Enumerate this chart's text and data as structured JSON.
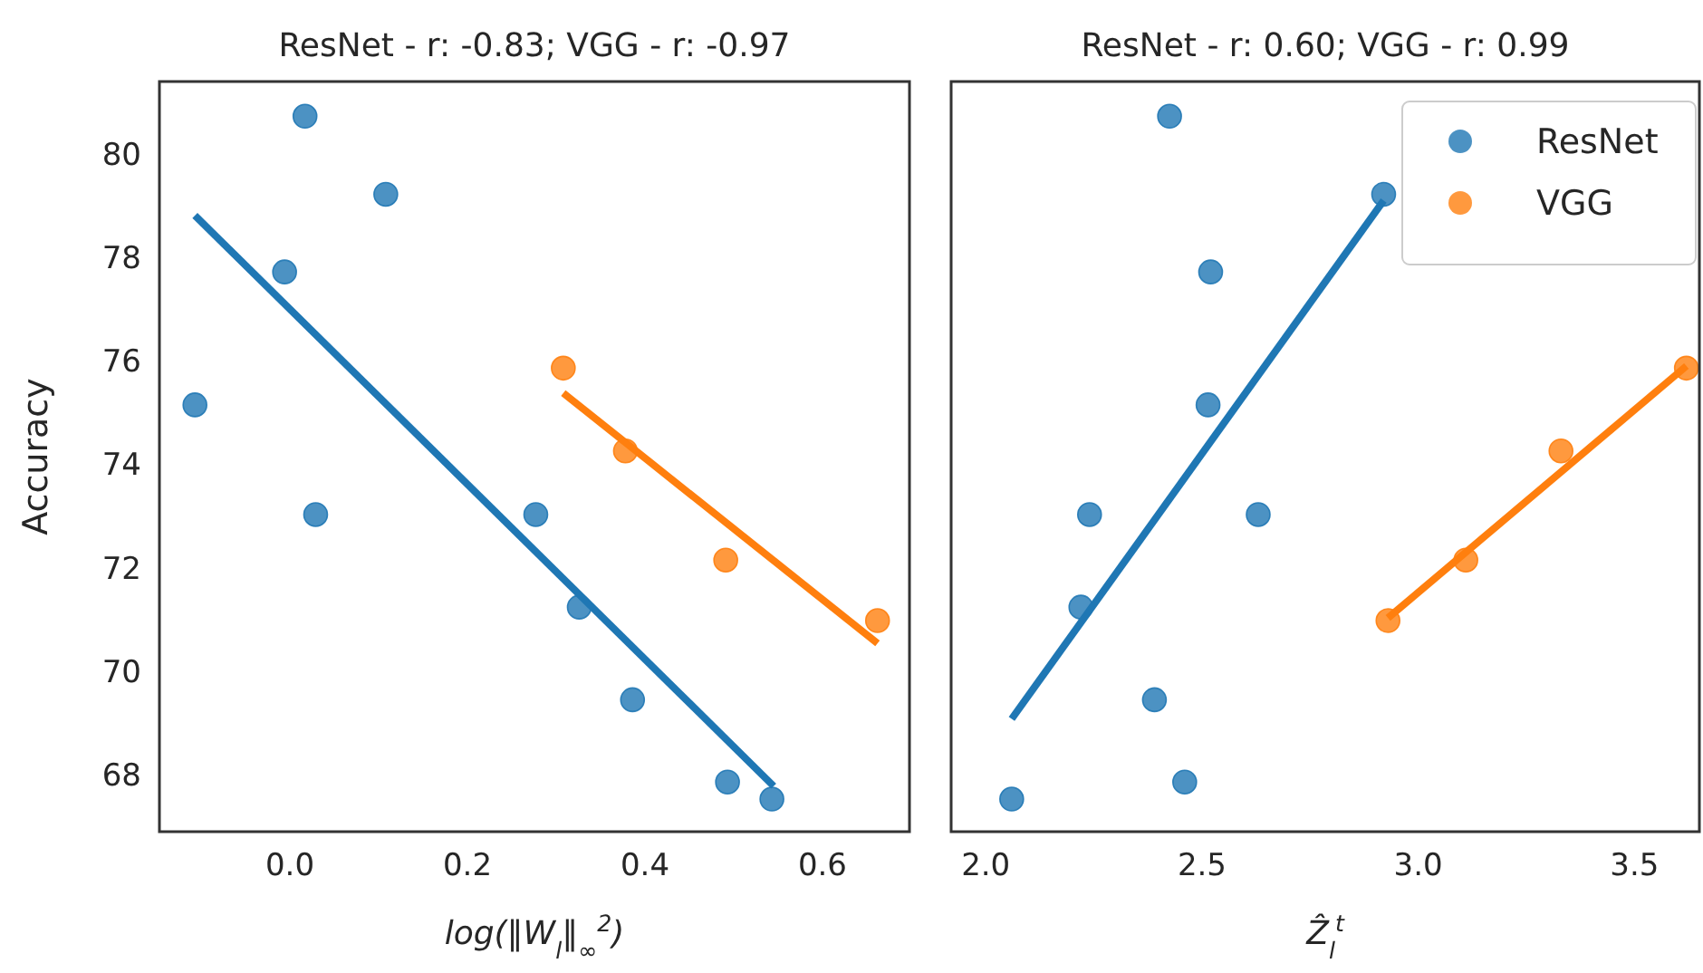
{
  "chart_data": [
    {
      "type": "scatter",
      "title": "ResNet - r: -0.83; VGG - r: -0.97",
      "xlabel": "log(‖W$_{l}$‖$_{∞}$$^{2}$)",
      "ylabel": "Accuracy",
      "xlim": [
        -0.147,
        0.698
      ],
      "ylim": [
        66.9,
        81.4
      ],
      "xticks": [
        {
          "value": 0,
          "label": "0.0"
        },
        0.2,
        0.4,
        0.6
      ],
      "yticks": [
        68,
        70,
        72,
        74,
        76,
        78,
        80
      ],
      "grid": false,
      "legend": false,
      "series": [
        {
          "marker": "circle",
          "color": "#1f77b4",
          "x": [
            0.017,
            0.108,
            -0.006,
            -0.107,
            0.029,
            0.277,
            0.326,
            0.386,
            0.493,
            0.543
          ],
          "values": [
            80.73,
            79.22,
            77.72,
            75.15,
            73.03,
            73.03,
            71.24,
            69.45,
            67.86,
            67.53
          ]
        },
        {
          "marker": "circle",
          "color": "#ff7f0e",
          "x": [
            0.308,
            0.378,
            0.491,
            0.662
          ],
          "values": [
            75.86,
            74.26,
            72.15,
            70.98
          ]
        },
        {
          "type": "line",
          "marker": "none",
          "color": "#1f77b4",
          "x": [
            -0.107,
            0.545
          ],
          "values": [
            78.81,
            67.78
          ]
        },
        {
          "type": "line",
          "marker": "none",
          "color": "#ff7f0e",
          "x": [
            0.308,
            0.662
          ],
          "values": [
            75.38,
            70.54
          ]
        }
      ]
    },
    {
      "type": "scatter",
      "title": "ResNet - r: 0.60; VGG - r: 0.99",
      "xlabel": "Ẑ$_{l}$$^{t}$",
      "xlim": [
        1.92,
        3.65
      ],
      "ylim": [
        66.9,
        81.4
      ],
      "xticks": [
        {
          "value": 2,
          "label": "2.0"
        },
        2.5,
        {
          "value": 3,
          "label": "3.0"
        },
        3.5
      ],
      "yticks": [
        68,
        70,
        72,
        74,
        76,
        78,
        80
      ],
      "tick_labels": "x",
      "grid": false,
      "legend": "top right",
      "series": [
        {
          "marker": "circle",
          "name": "ResNet",
          "color": "#1f77b4",
          "x": [
            2.425,
            2.92,
            2.52,
            2.514,
            2.24,
            2.63,
            2.22,
            2.39,
            2.46,
            2.06
          ],
          "values": [
            80.73,
            79.22,
            77.72,
            75.15,
            73.03,
            73.03,
            71.24,
            69.45,
            67.86,
            67.53
          ]
        },
        {
          "marker": "circle",
          "name": "VGG",
          "color": "#ff7f0e",
          "x": [
            2.93,
            3.11,
            3.33,
            3.62
          ],
          "values": [
            70.98,
            72.15,
            74.26,
            75.86
          ]
        },
        {
          "type": "line",
          "marker": "none",
          "color": "#1f77b4",
          "x": [
            2.06,
            2.92
          ],
          "values": [
            69.08,
            79.1
          ]
        },
        {
          "type": "line",
          "marker": "none",
          "color": "#ff7f0e",
          "x": [
            2.93,
            3.62
          ],
          "values": [
            71.03,
            75.9
          ]
        }
      ]
    }
  ]
}
